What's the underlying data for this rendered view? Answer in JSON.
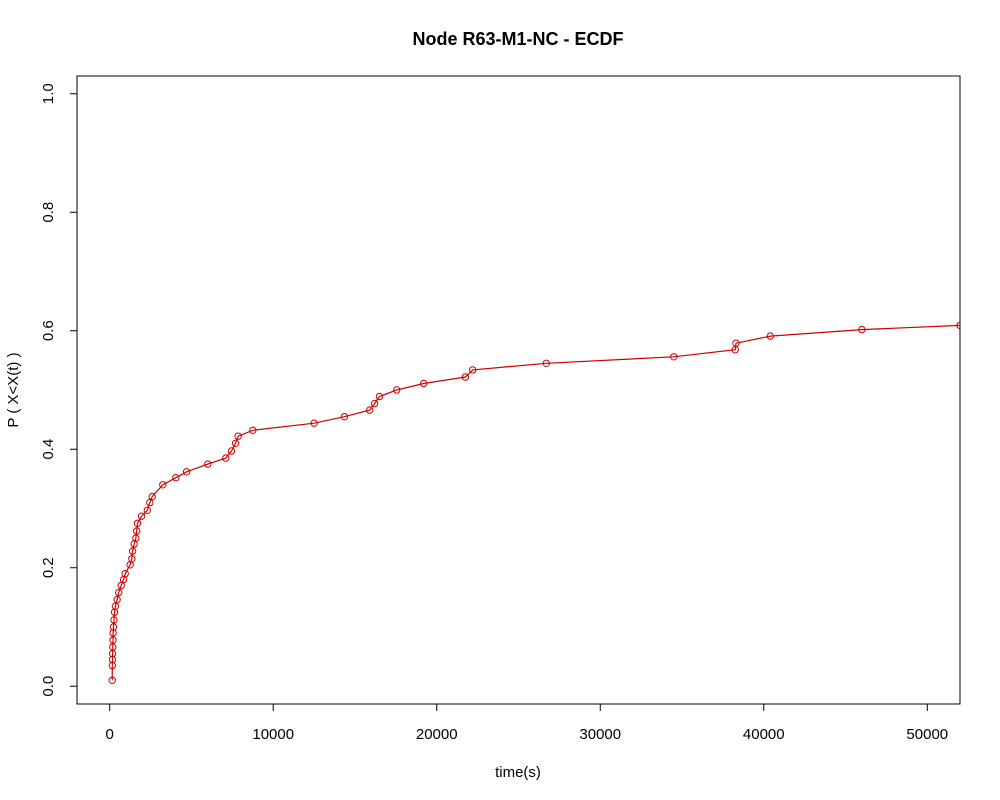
{
  "chart_data": {
    "type": "line",
    "title": "Node R63-M1-NC - ECDF",
    "xlabel": "time(s)",
    "ylabel": "P ( X<X(t) )",
    "xlim": [
      -2000,
      52000
    ],
    "ylim": [
      -0.03,
      1.03
    ],
    "xticks": [
      0,
      10000,
      20000,
      30000,
      40000,
      50000
    ],
    "xtick_labels": [
      "0",
      "10000",
      "20000",
      "30000",
      "40000",
      "50000"
    ],
    "yticks": [
      0.0,
      0.2,
      0.4,
      0.6,
      0.8,
      1.0
    ],
    "ytick_labels": [
      "0.0",
      "0.2",
      "0.4",
      "0.6",
      "0.8",
      "1.0"
    ],
    "grid": false,
    "legend": "none",
    "colors": {
      "series": "#cc0000",
      "axis": "#000000"
    },
    "series": [
      {
        "marker": "open-circle",
        "x": [
          150,
          160,
          170,
          180,
          190,
          200,
          210,
          230,
          260,
          300,
          350,
          450,
          550,
          700,
          850,
          950,
          1250,
          1350,
          1400,
          1500,
          1600,
          1650,
          1700,
          1950,
          2300,
          2450,
          2600,
          3250,
          4050,
          4700,
          6000,
          7100,
          7450,
          7700,
          7850,
          8750,
          12500,
          14350,
          15900,
          16200,
          16500,
          17550,
          19200,
          21750,
          22200,
          26700,
          34500,
          38250,
          38300,
          40400,
          46000,
          52000
        ],
        "y": [
          0.01,
          0.035,
          0.045,
          0.055,
          0.066,
          0.078,
          0.09,
          0.1,
          0.112,
          0.125,
          0.135,
          0.146,
          0.158,
          0.17,
          0.18,
          0.19,
          0.205,
          0.215,
          0.228,
          0.24,
          0.25,
          0.262,
          0.275,
          0.287,
          0.297,
          0.31,
          0.32,
          0.34,
          0.352,
          0.362,
          0.375,
          0.385,
          0.397,
          0.41,
          0.422,
          0.432,
          0.444,
          0.455,
          0.466,
          0.477,
          0.489,
          0.5,
          0.511,
          0.522,
          0.534,
          0.545,
          0.556,
          0.568,
          0.579,
          0.591,
          0.602,
          0.609
        ]
      }
    ]
  }
}
